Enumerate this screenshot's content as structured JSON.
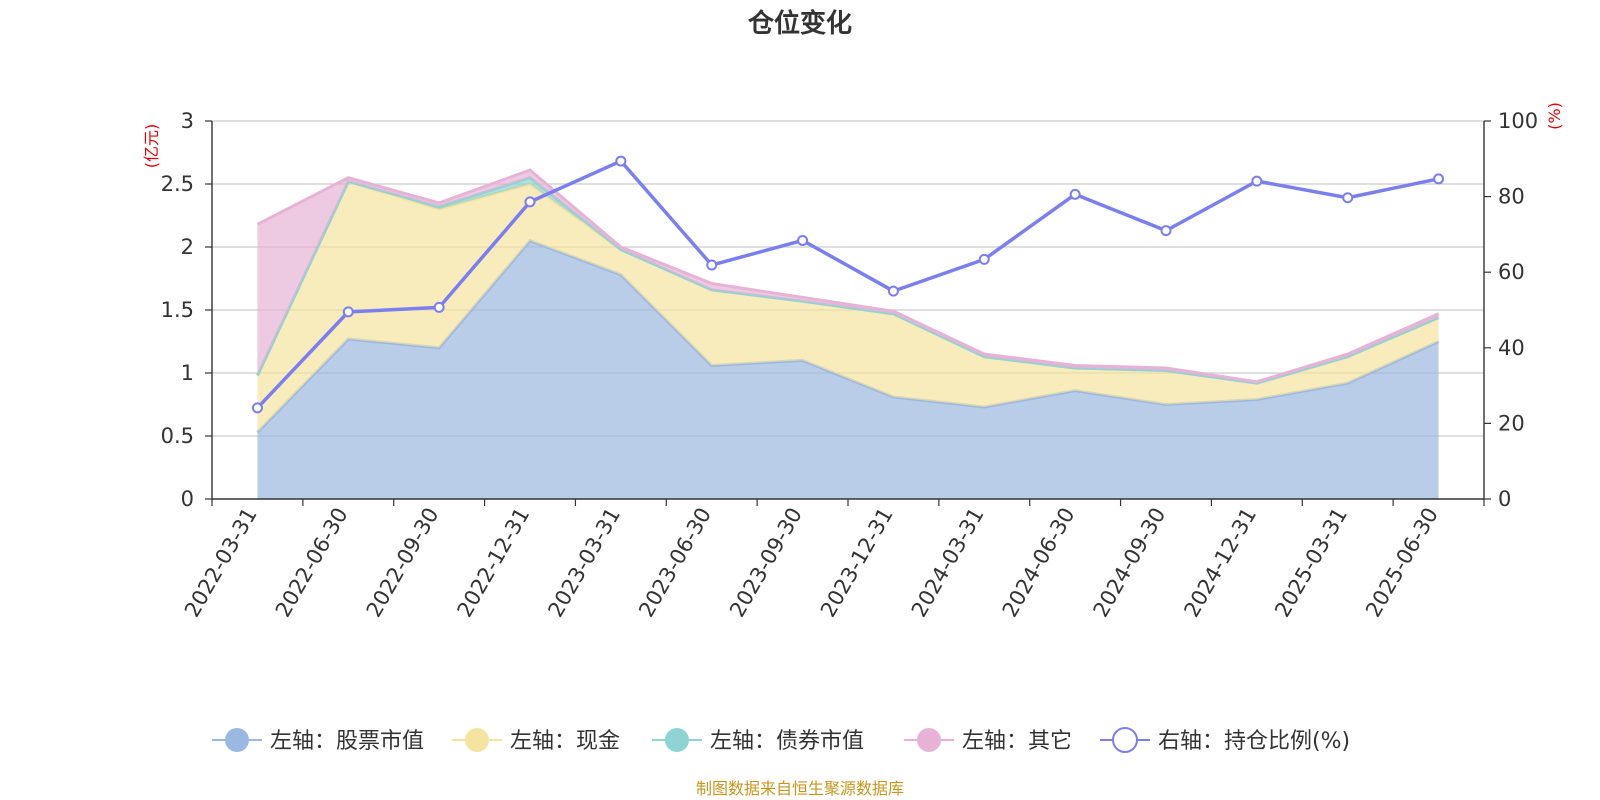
{
  "chart_data": {
    "type": "area",
    "title": "仓位变化",
    "left_axis_unit": "(亿元)",
    "right_axis_unit": "(%)",
    "left_axis": {
      "min": 0,
      "max": 3,
      "ticks": [
        "0",
        "0.5",
        "1",
        "1.5",
        "2",
        "2.5",
        "3"
      ]
    },
    "right_axis": {
      "min": 0,
      "max": 100,
      "ticks": [
        "0",
        "20",
        "40",
        "60",
        "80",
        "100"
      ]
    },
    "grid": true,
    "legend_position": "bottom",
    "categories": [
      "2022-03-31",
      "2022-06-30",
      "2022-09-30",
      "2022-12-31",
      "2023-03-31",
      "2023-06-30",
      "2023-09-30",
      "2023-12-31",
      "2024-03-31",
      "2024-06-30",
      "2024-09-30",
      "2024-12-31",
      "2025-03-31",
      "2025-06-30"
    ],
    "series": [
      {
        "name": "左轴：股票市值",
        "axis": "left",
        "kind": "stacked-area",
        "color": "#9bb8e0",
        "values": [
          0.53,
          1.27,
          1.2,
          2.05,
          1.78,
          1.06,
          1.1,
          0.81,
          0.73,
          0.86,
          0.75,
          0.79,
          0.92,
          1.25
        ]
      },
      {
        "name": "左轴：现金",
        "axis": "left",
        "kind": "stacked-area",
        "color": "#f5e3a0",
        "values": [
          0.45,
          1.25,
          1.1,
          0.45,
          0.2,
          0.6,
          0.47,
          0.66,
          0.4,
          0.18,
          0.27,
          0.13,
          0.21,
          0.19
        ]
      },
      {
        "name": "左轴：债券市值",
        "axis": "left",
        "kind": "stacked-area",
        "color": "#8fd3d3",
        "values": [
          0,
          0,
          0.02,
          0.05,
          0,
          0,
          0,
          0,
          0,
          0,
          0,
          0,
          0,
          0
        ]
      },
      {
        "name": "左轴：其它",
        "axis": "left",
        "kind": "stacked-area",
        "color": "#e6b3d6",
        "values": [
          1.2,
          0.03,
          0.03,
          0.06,
          0.02,
          0.05,
          0.03,
          0.02,
          0.02,
          0.02,
          0.02,
          0.01,
          0.02,
          0.03
        ]
      },
      {
        "name": "右轴：持仓比例(%)",
        "axis": "right",
        "kind": "line",
        "color": "#7b7ef0",
        "values": [
          24.1,
          49.5,
          50.7,
          78.6,
          89.4,
          61.9,
          68.4,
          55.0,
          63.4,
          80.6,
          71.0,
          84.1,
          79.7,
          84.7
        ]
      }
    ]
  },
  "source_note": "制图数据来自恒生聚源数据库"
}
